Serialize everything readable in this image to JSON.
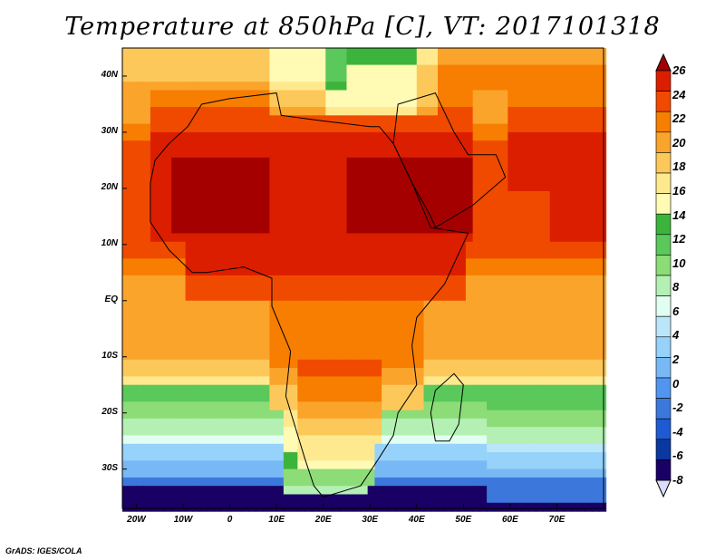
{
  "title": "Temperature at 850hPa [C], VT: 2017101318",
  "footer": "GrADS: IGES/COLA",
  "map": {
    "variable": "Temperature at 850hPa",
    "units": "C",
    "valid_time": "2017101318",
    "extent": {
      "lon_min": -23,
      "lon_max": 80,
      "lat_min": -37,
      "lat_max": 45
    },
    "lat_ticks": [
      {
        "label": "40N",
        "lat": 40
      },
      {
        "label": "30N",
        "lat": 30
      },
      {
        "label": "20N",
        "lat": 20
      },
      {
        "label": "10N",
        "lat": 10
      },
      {
        "label": "EQ",
        "lat": 0
      },
      {
        "label": "10S",
        "lat": -10
      },
      {
        "label": "20S",
        "lat": -20
      },
      {
        "label": "30S",
        "lat": -30
      }
    ],
    "lon_ticks": [
      {
        "label": "20W",
        "lon": -20
      },
      {
        "label": "10W",
        "lon": -10
      },
      {
        "label": "0",
        "lon": 0
      },
      {
        "label": "10E",
        "lon": 10
      },
      {
        "label": "20E",
        "lon": 20
      },
      {
        "label": "30E",
        "lon": 30
      },
      {
        "label": "40E",
        "lon": 40
      },
      {
        "label": "50E",
        "lon": 50
      },
      {
        "label": "60E",
        "lon": 60
      },
      {
        "label": "70E",
        "lon": 70
      }
    ]
  },
  "colorbar": {
    "labels": [
      "26",
      "24",
      "22",
      "20",
      "18",
      "16",
      "14",
      "12",
      "10",
      "8",
      "6",
      "4",
      "2",
      "0",
      "-2",
      "-4",
      "-6",
      "-8"
    ],
    "colors": [
      "#a50000",
      "#dc1e00",
      "#f04a00",
      "#f77e00",
      "#faa42c",
      "#fdc85a",
      "#fee98e",
      "#fffab4",
      "#3cb43c",
      "#5ac85a",
      "#8cdc78",
      "#b4f0b4",
      "#e1fff0",
      "#bbe6fa",
      "#96d2fa",
      "#78b9f5",
      "#5096f0",
      "#3c78dc",
      "#1e5ad2",
      "#0a37a0",
      "#190064",
      "#dcdcff"
    ]
  }
}
